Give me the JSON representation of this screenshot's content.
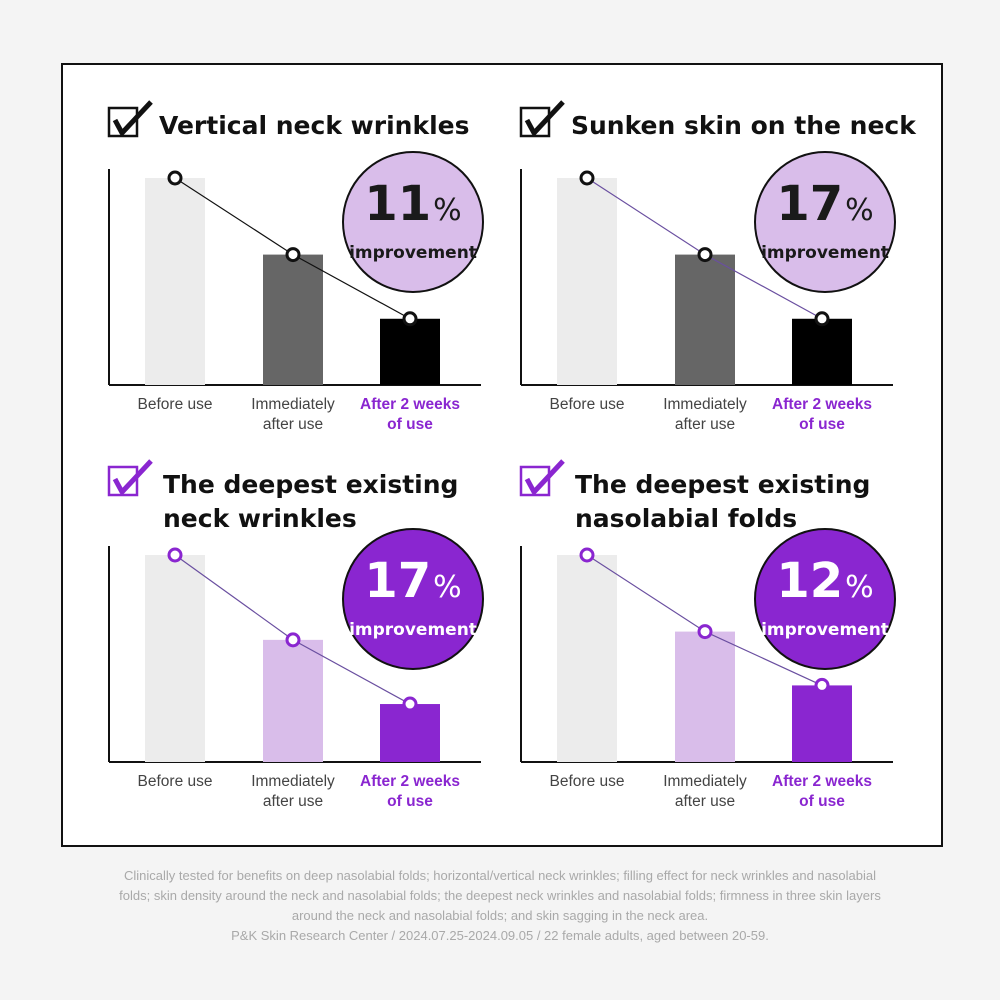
{
  "chart_data": [
    {
      "type": "bar",
      "title": "Vertical neck wrinkles",
      "categories": [
        "Before use",
        "Immediately after use",
        "After 2 weeks of use"
      ],
      "category_lines": [
        [
          "Before use"
        ],
        [
          "Immediately",
          "after use"
        ],
        [
          "After 2 weeks",
          "of use"
        ]
      ],
      "values": [
        100,
        63,
        32
      ],
      "unit": "relative (before use = 100)",
      "badge_value": "11",
      "badge_unit": "%",
      "badge_label": "improvement",
      "theme": "dark",
      "colors": {
        "bars": [
          "#ececec",
          "#666666",
          "#000000"
        ],
        "badge": "#d9bdea",
        "badge_text": "#1a1a1a",
        "line": "#111111",
        "check": "#111111"
      }
    },
    {
      "type": "bar",
      "title": "Sunken skin on the neck",
      "categories": [
        "Before use",
        "Immediately after use",
        "After 2 weeks of use"
      ],
      "category_lines": [
        [
          "Before use"
        ],
        [
          "Immediately",
          "after use"
        ],
        [
          "After 2 weeks",
          "of use"
        ]
      ],
      "values": [
        100,
        63,
        32
      ],
      "unit": "relative (before use = 100)",
      "badge_value": "17",
      "badge_unit": "%",
      "badge_label": "improvement",
      "theme": "dark",
      "colors": {
        "bars": [
          "#ececec",
          "#666666",
          "#000000"
        ],
        "badge": "#d9bdea",
        "badge_text": "#1a1a1a",
        "line": "#6a4fa0",
        "check": "#111111"
      }
    },
    {
      "type": "bar",
      "title": "The deepest existing neck wrinkles",
      "title_lines": [
        "The deepest existing",
        "neck wrinkles"
      ],
      "categories": [
        "Before use",
        "Immediately after use",
        "After 2 weeks of use"
      ],
      "category_lines": [
        [
          "Before use"
        ],
        [
          "Immediately",
          "after use"
        ],
        [
          "After 2 weeks",
          "of use"
        ]
      ],
      "values": [
        100,
        59,
        28
      ],
      "unit": "relative (before use = 100)",
      "badge_value": "17",
      "badge_unit": "%",
      "badge_label": "improvement",
      "theme": "purple",
      "colors": {
        "bars": [
          "#ececec",
          "#d9bdea",
          "#8a26d0"
        ],
        "badge": "#8a26d0",
        "badge_text": "#ffffff",
        "line": "#6a4fa0",
        "check": "#8a26d0"
      }
    },
    {
      "type": "bar",
      "title": "The deepest existing nasolabial folds",
      "title_lines": [
        "The deepest existing",
        "nasolabial folds"
      ],
      "categories": [
        "Before use",
        "Immediately after use",
        "After 2 weeks of use"
      ],
      "category_lines": [
        [
          "Before use"
        ],
        [
          "Immediately",
          "after use"
        ],
        [
          "After 2 weeks",
          "of use"
        ]
      ],
      "values": [
        100,
        63,
        37
      ],
      "unit": "relative (before use = 100)",
      "badge_value": "12",
      "badge_unit": "%",
      "badge_label": "improvement",
      "theme": "purple",
      "colors": {
        "bars": [
          "#ececec",
          "#d9bdea",
          "#8a26d0"
        ],
        "badge": "#8a26d0",
        "badge_text": "#ffffff",
        "line": "#6a4fa0",
        "check": "#8a26d0"
      }
    }
  ],
  "accent_label_color": "#8a26d0",
  "footer": {
    "lines": [
      "Clinically tested for benefits on deep nasolabial folds; horizontal/vertical neck wrinkles; filling effect for neck wrinkles and nasolabial",
      "folds; skin density around the neck and nasolabial folds; the deepest neck wrinkles and nasolabial folds; firmness in three skin layers",
      "around the neck and nasolabial folds; and skin sagging in the neck area.",
      "P&K Skin Research Center / 2024.07.25-2024.09.05 / 22 female adults, aged between 20-59."
    ]
  }
}
